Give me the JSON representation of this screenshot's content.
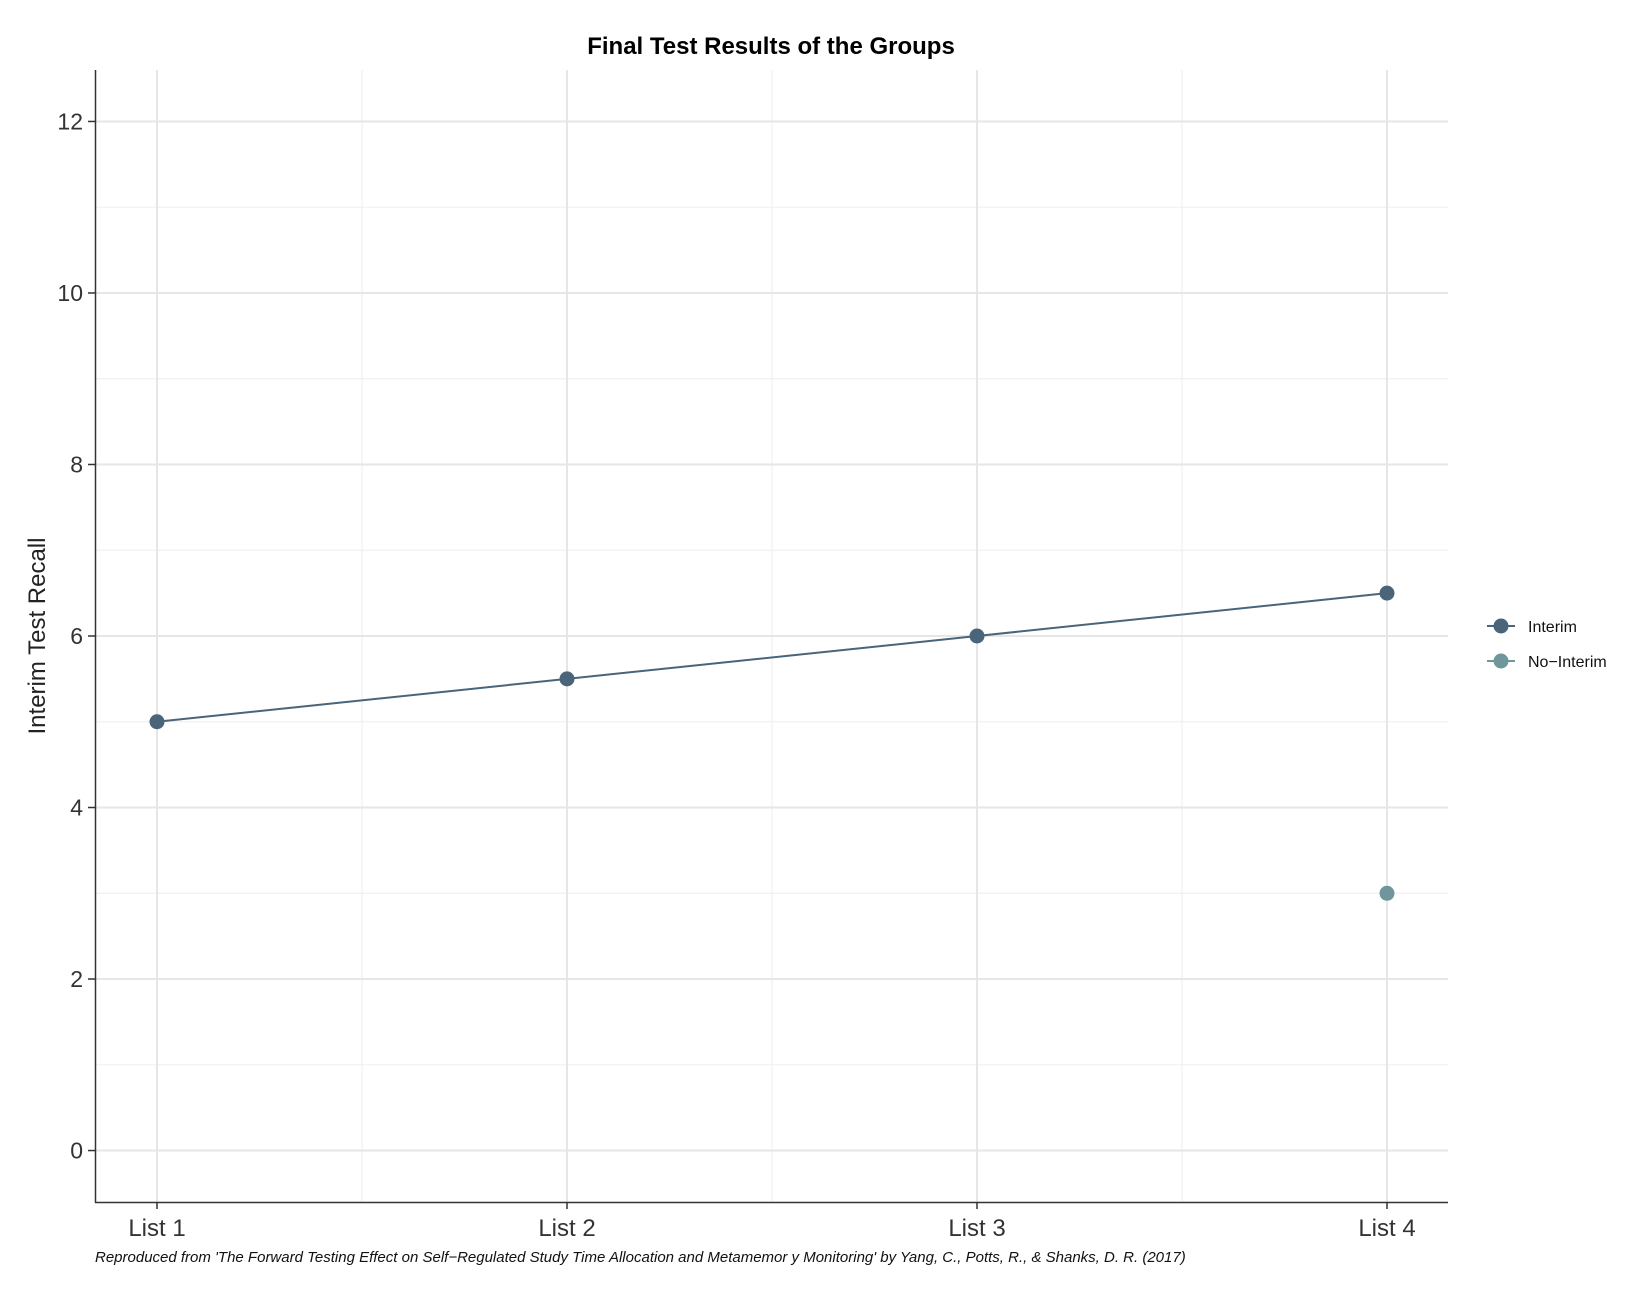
{
  "chart_data": {
    "type": "line",
    "title": "Final Test Results of the Groups",
    "xlabel": "",
    "ylabel": "Interim Test Recall",
    "categories": [
      "List 1",
      "List 2",
      "List 3",
      "List 4"
    ],
    "yticks": [
      "0",
      "2",
      "4",
      "6",
      "8",
      "10",
      "12"
    ],
    "ylim": [
      -0.6,
      12.6
    ],
    "grid": true,
    "legend_position": "right",
    "series": [
      {
        "name": "Interim",
        "color": "#4a6479",
        "values": [
          5.0,
          5.5,
          6.0,
          6.5
        ],
        "connected": true
      },
      {
        "name": "No−Interim",
        "color": "#6f969a",
        "values": [
          null,
          null,
          null,
          3.0
        ],
        "connected": true
      }
    ],
    "caption": "Reproduced from 'The Forward Testing Effect on Self−Regulated Study Time Allocation and Metamemor y Monitoring' by Yang, C., Potts, R., & Shanks, D. R. (2017)"
  }
}
